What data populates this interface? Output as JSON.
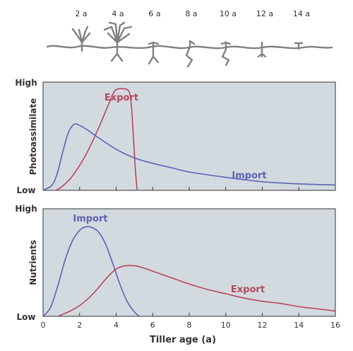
{
  "chart_data": [
    {
      "type": "line",
      "ylabel": "Photoassimilate",
      "y_ticks": [
        "High",
        "Low"
      ],
      "xlim": [
        0,
        16
      ],
      "ylim": [
        0,
        1
      ],
      "grid": false,
      "series": [
        {
          "name": "Export",
          "color": "#b5485c",
          "x": [
            0.7,
            1.0,
            1.5,
            2.0,
            2.5,
            3.0,
            3.5,
            3.8,
            4.0,
            4.3,
            4.6,
            4.75,
            4.85,
            4.95,
            5.05,
            5.15
          ],
          "y": [
            0.0,
            0.03,
            0.11,
            0.23,
            0.38,
            0.56,
            0.76,
            0.88,
            0.93,
            0.94,
            0.93,
            0.89,
            0.75,
            0.48,
            0.2,
            0.0
          ]
        },
        {
          "name": "Import",
          "color": "#5b62b6",
          "x": [
            0.0,
            0.5,
            0.8,
            1.1,
            1.4,
            1.7,
            2.0,
            2.5,
            3.0,
            4.0,
            5.0,
            6.0,
            7.0,
            8.0,
            10.0,
            12.0,
            14.0,
            16.0
          ],
          "y": [
            0.0,
            0.05,
            0.17,
            0.37,
            0.54,
            0.61,
            0.6,
            0.55,
            0.49,
            0.38,
            0.3,
            0.25,
            0.21,
            0.17,
            0.12,
            0.08,
            0.06,
            0.05
          ]
        }
      ]
    },
    {
      "type": "line",
      "ylabel": "Nutrients",
      "xlabel": "Tiller age (a)",
      "y_ticks": [
        "High",
        "Low"
      ],
      "x_ticks": [
        0,
        2,
        4,
        6,
        8,
        10,
        12,
        14,
        16
      ],
      "xlim": [
        0,
        16
      ],
      "ylim": [
        0,
        1
      ],
      "grid": false,
      "series": [
        {
          "name": "Import",
          "color": "#5b62b6",
          "x": [
            0.0,
            0.4,
            0.8,
            1.2,
            1.6,
            2.0,
            2.3,
            2.6,
            3.0,
            3.4,
            3.8,
            4.2,
            4.6,
            5.0,
            5.3
          ],
          "y": [
            0.0,
            0.08,
            0.28,
            0.52,
            0.7,
            0.8,
            0.83,
            0.83,
            0.79,
            0.68,
            0.5,
            0.3,
            0.14,
            0.04,
            0.0
          ]
        },
        {
          "name": "Export",
          "color": "#b5485c",
          "x": [
            0.8,
            1.5,
            2.0,
            2.5,
            3.0,
            3.5,
            4.0,
            4.5,
            5.0,
            5.5,
            6.0,
            7.0,
            8.0,
            9.0,
            10.0,
            11.0,
            12.0,
            13.0,
            14.0,
            15.0,
            16.0
          ],
          "y": [
            0.0,
            0.05,
            0.1,
            0.17,
            0.26,
            0.36,
            0.44,
            0.47,
            0.47,
            0.45,
            0.42,
            0.36,
            0.3,
            0.25,
            0.21,
            0.17,
            0.14,
            0.12,
            0.09,
            0.07,
            0.05
          ]
        }
      ]
    }
  ],
  "illustration": {
    "ages": [
      "2 a",
      "4 a",
      "6 a",
      "8 a",
      "10 a",
      "12 a",
      "14 a"
    ],
    "color": "#808080"
  },
  "colors": {
    "panel_bg": "#d3dadf",
    "axis": "#333333"
  }
}
